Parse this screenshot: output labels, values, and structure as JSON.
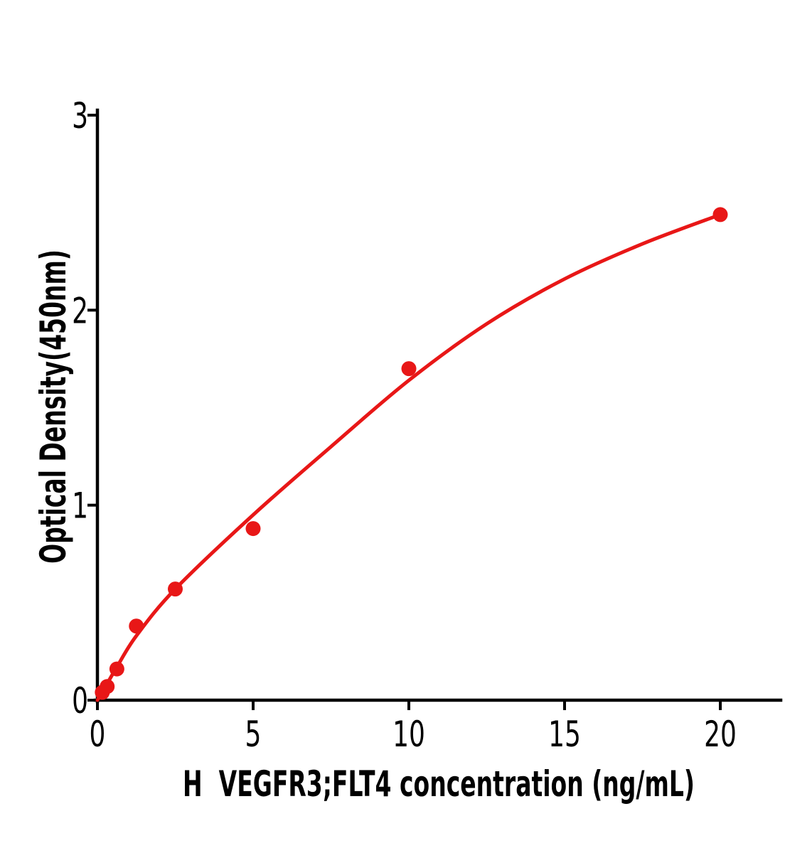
{
  "page": {
    "background_color": "#ffffff",
    "axis_color": "#000000",
    "accent_color": "#e81717"
  },
  "chart_data": {
    "type": "scatter",
    "title": "",
    "xlabel": "H  VEGFR3;FLT4 concentration (ng/mL)",
    "ylabel": "Optical Density(450nm)",
    "xlim": [
      0,
      21.9
    ],
    "ylim": [
      0,
      3
    ],
    "x_ticks": [
      0,
      5,
      10,
      15,
      20
    ],
    "y_ticks": [
      0,
      1,
      2,
      3
    ],
    "grid": false,
    "legend": "none",
    "series": [
      {
        "name": "standard-points",
        "type": "scatter",
        "marker": "circle",
        "color": "#e81717",
        "points": [
          {
            "x": 0.156,
            "y": 0.04
          },
          {
            "x": 0.313,
            "y": 0.07
          },
          {
            "x": 0.625,
            "y": 0.16
          },
          {
            "x": 1.25,
            "y": 0.38
          },
          {
            "x": 2.5,
            "y": 0.57
          },
          {
            "x": 5,
            "y": 0.88
          },
          {
            "x": 10,
            "y": 1.7
          },
          {
            "x": 20,
            "y": 2.49
          }
        ]
      },
      {
        "name": "fit-curve",
        "type": "line",
        "color": "#e81717",
        "points": [
          {
            "x": 0,
            "y": 0.0
          },
          {
            "x": 0.313,
            "y": 0.085
          },
          {
            "x": 0.625,
            "y": 0.17
          },
          {
            "x": 1.25,
            "y": 0.33
          },
          {
            "x": 2.5,
            "y": 0.57
          },
          {
            "x": 5,
            "y": 0.95
          },
          {
            "x": 7.5,
            "y": 1.3
          },
          {
            "x": 10,
            "y": 1.64
          },
          {
            "x": 12.5,
            "y": 1.93
          },
          {
            "x": 15,
            "y": 2.16
          },
          {
            "x": 17.5,
            "y": 2.34
          },
          {
            "x": 20,
            "y": 2.49
          }
        ]
      }
    ]
  }
}
